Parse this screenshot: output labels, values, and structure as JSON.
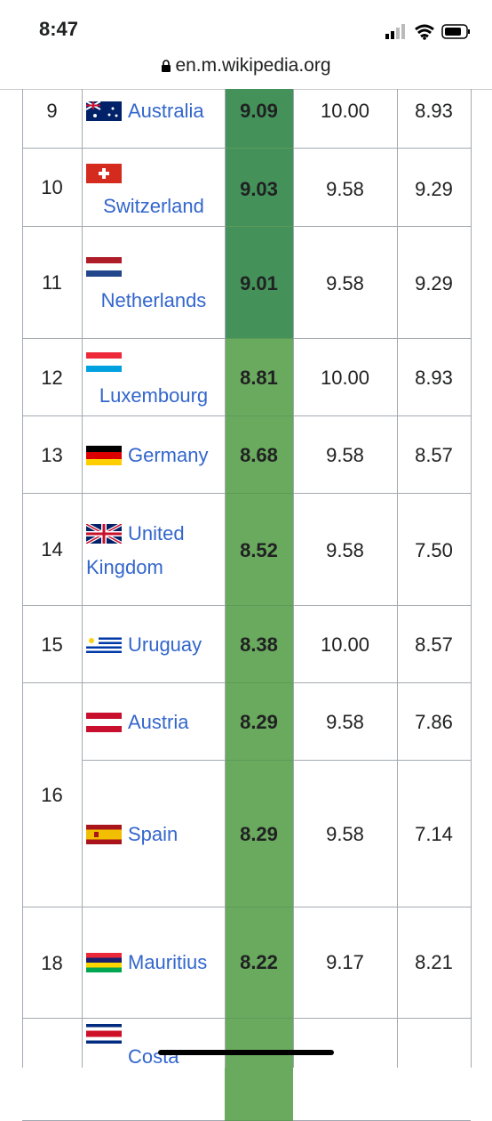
{
  "status_bar": {
    "time": "8:47"
  },
  "url_bar": {
    "url": "en.m.wikipedia.org"
  },
  "table": {
    "rows": [
      {
        "rank": "9",
        "country": "Australia",
        "score": "9.09",
        "col1": "10.00",
        "col2": "8.93"
      },
      {
        "rank": "10",
        "country": "Switzerland",
        "score": "9.03",
        "col1": "9.58",
        "col2": "9.29"
      },
      {
        "rank": "11",
        "country": "Netherlands",
        "score": "9.01",
        "col1": "9.58",
        "col2": "9.29"
      },
      {
        "rank": "12",
        "country": "Luxembourg",
        "score": "8.81",
        "col1": "10.00",
        "col2": "8.93"
      },
      {
        "rank": "13",
        "country": "Germany",
        "score": "8.68",
        "col1": "9.58",
        "col2": "8.57"
      },
      {
        "rank": "14",
        "country": "United Kingdom",
        "score": "8.52",
        "col1": "9.58",
        "col2": "7.50"
      },
      {
        "rank": "15",
        "country": "Uruguay",
        "score": "8.38",
        "col1": "10.00",
        "col2": "8.57"
      },
      {
        "rank": "16",
        "country": "Austria",
        "score": "8.29",
        "col1": "9.58",
        "col2": "7.86"
      },
      {
        "country": "Spain",
        "score": "8.29",
        "col1": "9.58",
        "col2": "7.14"
      },
      {
        "rank": "18",
        "country": "Mauritius",
        "score": "8.22",
        "col1": "9.17",
        "col2": "8.21"
      },
      {
        "country": "Costa"
      }
    ]
  }
}
